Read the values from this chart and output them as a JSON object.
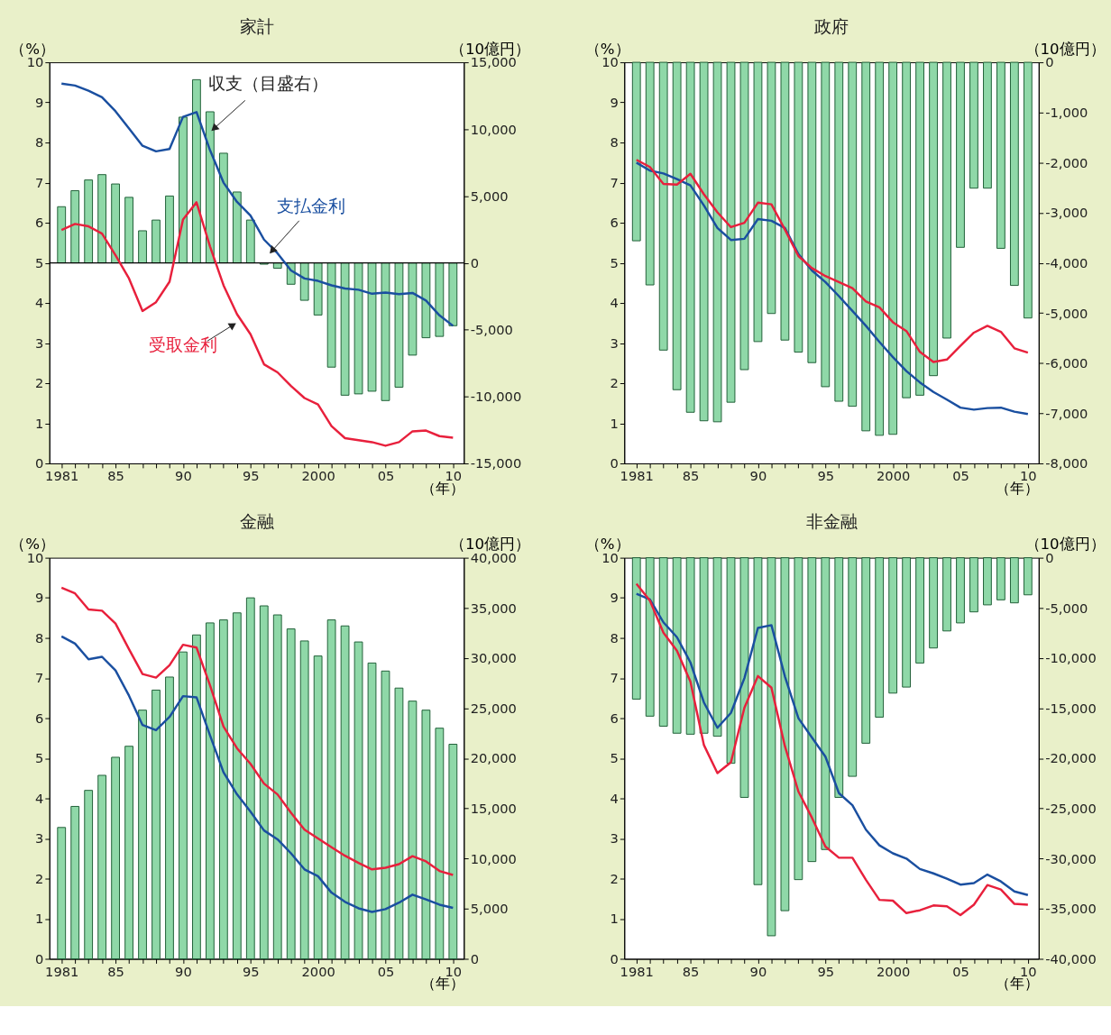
{
  "chart_data": [
    {
      "type": "bar",
      "title": "家計",
      "ylabel": "（%）",
      "y2label": "（10億円）",
      "xlabel": "（年）",
      "x": [
        1981,
        1982,
        1983,
        1984,
        1985,
        1986,
        1987,
        1988,
        1989,
        1990,
        1991,
        1992,
        1993,
        1994,
        1995,
        1996,
        1997,
        1998,
        1999,
        2000,
        2001,
        2002,
        2003,
        2004,
        2005,
        2006,
        2007,
        2008,
        2009,
        2010
      ],
      "xlim": [
        1980.1,
        2010.8
      ],
      "xticks": [
        1981,
        {
          "value": 1982,
          "label": null
        },
        {
          "value": 1983,
          "label": null
        },
        {
          "value": 1984,
          "label": null
        },
        {
          "value": 1985,
          "label": "85"
        },
        {
          "value": 1986,
          "label": null
        },
        {
          "value": 1987,
          "label": null
        },
        {
          "value": 1988,
          "label": null
        },
        {
          "value": 1989,
          "label": null
        },
        {
          "value": 1990,
          "label": "90"
        },
        {
          "value": 1991,
          "label": null
        },
        {
          "value": 1992,
          "label": null
        },
        {
          "value": 1993,
          "label": null
        },
        {
          "value": 1994,
          "label": null
        },
        {
          "value": 1995,
          "label": "95"
        },
        {
          "value": 1996,
          "label": null
        },
        {
          "value": 1997,
          "label": null
        },
        {
          "value": 1998,
          "label": null
        },
        {
          "value": 1999,
          "label": null
        },
        2000,
        {
          "value": 2001,
          "label": null
        },
        {
          "value": 2002,
          "label": null
        },
        {
          "value": 2003,
          "label": null
        },
        {
          "value": 2004,
          "label": null
        },
        {
          "value": 2005,
          "label": "05"
        },
        {
          "value": 2006,
          "label": null
        },
        {
          "value": 2007,
          "label": null
        },
        {
          "value": 2008,
          "label": null
        },
        {
          "value": 2009,
          "label": null
        },
        {
          "value": 2010,
          "label": "10"
        }
      ],
      "ylim": [
        0,
        10
      ],
      "yticks": [
        0,
        1,
        2,
        3,
        4,
        5,
        6,
        7,
        8,
        9,
        10
      ],
      "y2lim": [
        -15000,
        15000
      ],
      "y2ticks": [
        {
          "value": -15000,
          "label": "-15,000"
        },
        {
          "value": -10000,
          "label": "-10,000"
        },
        {
          "value": -5000,
          "label": "-5,000"
        },
        0,
        {
          "value": 5000,
          "label": "5,000"
        },
        {
          "value": 10000,
          "label": "10,000"
        },
        {
          "value": 15000,
          "label": "15,000"
        }
      ],
      "ref_lines": [
        {
          "axis": "y2",
          "value": 0,
          "color": "#000000"
        }
      ],
      "series": [
        {
          "name": "収支（目盛右）",
          "axis": "y2",
          "color": "#8fd8a8",
          "values": [
            4200,
            5400,
            6200,
            6600,
            5900,
            4900,
            2400,
            3200,
            5000,
            10900,
            13700,
            11300,
            8200,
            5300,
            3200,
            -100,
            -400,
            -1600,
            -2800,
            -3900,
            -7800,
            -9900,
            -9800,
            -9600,
            -10300,
            -9300,
            -6900,
            -5600,
            -5500,
            -4700
          ]
        },
        {
          "name": "支払金利",
          "type": "line",
          "color": "#1a4fa0",
          "values": [
            9.47,
            9.42,
            9.29,
            9.13,
            8.78,
            8.35,
            7.92,
            7.78,
            7.84,
            8.64,
            8.76,
            7.81,
            7.0,
            6.52,
            6.18,
            5.58,
            5.24,
            4.81,
            4.61,
            4.55,
            4.44,
            4.36,
            4.33,
            4.23,
            4.26,
            4.22,
            4.25,
            4.06,
            3.69,
            3.43
          ]
        },
        {
          "name": "受取金利",
          "type": "line",
          "color": "#e8203c",
          "values": [
            5.82,
            5.97,
            5.91,
            5.73,
            5.19,
            4.61,
            3.8,
            4.02,
            4.53,
            6.08,
            6.51,
            5.41,
            4.44,
            3.72,
            3.22,
            2.47,
            2.27,
            1.93,
            1.63,
            1.47,
            0.93,
            0.63,
            0.58,
            0.53,
            0.44,
            0.53,
            0.8,
            0.82,
            0.68,
            0.64
          ]
        }
      ]
    },
    {
      "type": "bar",
      "title": "政府",
      "ylabel": "（%）",
      "y2label": "（10億円）",
      "xlabel": "（年）",
      "x": [
        1981,
        1982,
        1983,
        1984,
        1985,
        1986,
        1987,
        1988,
        1989,
        1990,
        1991,
        1992,
        1993,
        1994,
        1995,
        1996,
        1997,
        1998,
        1999,
        2000,
        2001,
        2002,
        2003,
        2004,
        2005,
        2006,
        2007,
        2008,
        2009,
        2010
      ],
      "xlim": [
        1980.1,
        2010.8
      ],
      "xticks": [
        1981,
        {
          "value": 1982,
          "label": null
        },
        {
          "value": 1983,
          "label": null
        },
        {
          "value": 1984,
          "label": null
        },
        {
          "value": 1985,
          "label": "85"
        },
        {
          "value": 1986,
          "label": null
        },
        {
          "value": 1987,
          "label": null
        },
        {
          "value": 1988,
          "label": null
        },
        {
          "value": 1989,
          "label": null
        },
        {
          "value": 1990,
          "label": "90"
        },
        {
          "value": 1991,
          "label": null
        },
        {
          "value": 1992,
          "label": null
        },
        {
          "value": 1993,
          "label": null
        },
        {
          "value": 1994,
          "label": null
        },
        {
          "value": 1995,
          "label": "95"
        },
        {
          "value": 1996,
          "label": null
        },
        {
          "value": 1997,
          "label": null
        },
        {
          "value": 1998,
          "label": null
        },
        {
          "value": 1999,
          "label": null
        },
        2000,
        {
          "value": 2001,
          "label": null
        },
        {
          "value": 2002,
          "label": null
        },
        {
          "value": 2003,
          "label": null
        },
        {
          "value": 2004,
          "label": null
        },
        {
          "value": 2005,
          "label": "05"
        },
        {
          "value": 2006,
          "label": null
        },
        {
          "value": 2007,
          "label": null
        },
        {
          "value": 2008,
          "label": null
        },
        {
          "value": 2009,
          "label": null
        },
        {
          "value": 2010,
          "label": "10"
        }
      ],
      "ylim": [
        0,
        10
      ],
      "yticks": [
        0,
        1,
        2,
        3,
        4,
        5,
        6,
        7,
        8,
        9,
        10
      ],
      "y2lim": [
        -8000,
        0
      ],
      "y2ticks": [
        {
          "value": -8000,
          "label": "-8,000"
        },
        {
          "value": -7000,
          "label": "-7,000"
        },
        {
          "value": -6000,
          "label": "-6,000"
        },
        {
          "value": -5000,
          "label": "-5,000"
        },
        {
          "value": -4000,
          "label": "-4,000"
        },
        {
          "value": -3000,
          "label": "-3,000"
        },
        {
          "value": -2000,
          "label": "-2,000"
        },
        {
          "value": -1000,
          "label": "-1,000"
        },
        0
      ],
      "series": [
        {
          "axis": "y2",
          "color": "#8fd8a8",
          "values": [
            -3560,
            -4440,
            -5740,
            -6530,
            -6980,
            -7150,
            -7170,
            -6780,
            -6130,
            -5570,
            -5010,
            -5540,
            -5780,
            -5990,
            -6470,
            -6760,
            -6860,
            -7350,
            -7440,
            -7420,
            -6690,
            -6640,
            -6250,
            -5500,
            -3690,
            -2510,
            -2510,
            -3710,
            -4450,
            -5100
          ]
        },
        {
          "type": "line",
          "color": "#1a4fa0",
          "values": [
            7.5,
            7.3,
            7.23,
            7.09,
            6.93,
            6.43,
            5.87,
            5.57,
            5.6,
            6.09,
            6.05,
            5.87,
            5.22,
            4.81,
            4.52,
            4.17,
            3.8,
            3.43,
            3.03,
            2.65,
            2.3,
            2.02,
            1.78,
            1.59,
            1.39,
            1.34,
            1.38,
            1.39,
            1.29,
            1.23
          ]
        },
        {
          "type": "line",
          "color": "#e8203c",
          "values": [
            7.57,
            7.39,
            6.97,
            6.95,
            7.22,
            6.71,
            6.26,
            5.89,
            6.0,
            6.5,
            6.46,
            5.83,
            5.17,
            4.87,
            4.67,
            4.52,
            4.37,
            4.04,
            3.89,
            3.52,
            3.3,
            2.78,
            2.53,
            2.59,
            2.93,
            3.26,
            3.43,
            3.28,
            2.87,
            2.76
          ]
        }
      ]
    },
    {
      "type": "bar",
      "title": "金融",
      "ylabel": "（%）",
      "y2label": "（10億円）",
      "xlabel": "（年）",
      "x": [
        1981,
        1982,
        1983,
        1984,
        1985,
        1986,
        1987,
        1988,
        1989,
        1990,
        1991,
        1992,
        1993,
        1994,
        1995,
        1996,
        1997,
        1998,
        1999,
        2000,
        2001,
        2002,
        2003,
        2004,
        2005,
        2006,
        2007,
        2008,
        2009,
        2010
      ],
      "xlim": [
        1980.1,
        2010.8
      ],
      "xticks": [
        1981,
        {
          "value": 1982,
          "label": null
        },
        {
          "value": 1983,
          "label": null
        },
        {
          "value": 1984,
          "label": null
        },
        {
          "value": 1985,
          "label": "85"
        },
        {
          "value": 1986,
          "label": null
        },
        {
          "value": 1987,
          "label": null
        },
        {
          "value": 1988,
          "label": null
        },
        {
          "value": 1989,
          "label": null
        },
        {
          "value": 1990,
          "label": "90"
        },
        {
          "value": 1991,
          "label": null
        },
        {
          "value": 1992,
          "label": null
        },
        {
          "value": 1993,
          "label": null
        },
        {
          "value": 1994,
          "label": null
        },
        {
          "value": 1995,
          "label": "95"
        },
        {
          "value": 1996,
          "label": null
        },
        {
          "value": 1997,
          "label": null
        },
        {
          "value": 1998,
          "label": null
        },
        {
          "value": 1999,
          "label": null
        },
        2000,
        {
          "value": 2001,
          "label": null
        },
        {
          "value": 2002,
          "label": null
        },
        {
          "value": 2003,
          "label": null
        },
        {
          "value": 2004,
          "label": null
        },
        {
          "value": 2005,
          "label": "05"
        },
        {
          "value": 2006,
          "label": null
        },
        {
          "value": 2007,
          "label": null
        },
        {
          "value": 2008,
          "label": null
        },
        {
          "value": 2009,
          "label": null
        },
        {
          "value": 2010,
          "label": "10"
        }
      ],
      "ylim": [
        0,
        10
      ],
      "yticks": [
        0,
        1,
        2,
        3,
        4,
        5,
        6,
        7,
        8,
        9,
        10
      ],
      "y2lim": [
        0,
        40000
      ],
      "y2ticks": [
        0,
        {
          "value": 5000,
          "label": "5,000"
        },
        {
          "value": 10000,
          "label": "10,000"
        },
        {
          "value": 15000,
          "label": "15,000"
        },
        {
          "value": 20000,
          "label": "20,000"
        },
        {
          "value": 25000,
          "label": "25,000"
        },
        {
          "value": 30000,
          "label": "30,000"
        },
        {
          "value": 35000,
          "label": "35,000"
        },
        {
          "value": 40000,
          "label": "40,000"
        }
      ],
      "series": [
        {
          "axis": "y2",
          "color": "#8fd8a8",
          "values": [
            13100,
            15200,
            16800,
            18300,
            20100,
            21200,
            24800,
            26800,
            28100,
            30600,
            32300,
            33500,
            33800,
            34500,
            36000,
            35200,
            34300,
            32900,
            31700,
            30200,
            33800,
            33200,
            31600,
            29500,
            28700,
            27000,
            25700,
            24800,
            23000,
            21400
          ]
        },
        {
          "type": "line",
          "color": "#1a4fa0",
          "values": [
            8.04,
            7.86,
            7.47,
            7.53,
            7.19,
            6.56,
            5.83,
            5.7,
            6.03,
            6.55,
            6.52,
            5.57,
            4.65,
            4.1,
            3.67,
            3.2,
            2.98,
            2.63,
            2.23,
            2.06,
            1.65,
            1.42,
            1.26,
            1.17,
            1.24,
            1.4,
            1.6,
            1.48,
            1.35,
            1.27
          ]
        },
        {
          "type": "line",
          "color": "#e8203c",
          "values": [
            9.25,
            9.11,
            8.71,
            8.68,
            8.36,
            7.72,
            7.1,
            7.01,
            7.32,
            7.83,
            7.76,
            6.82,
            5.79,
            5.25,
            4.86,
            4.37,
            4.1,
            3.64,
            3.22,
            3.0,
            2.78,
            2.57,
            2.39,
            2.23,
            2.27,
            2.36,
            2.56,
            2.43,
            2.19,
            2.09
          ]
        }
      ]
    },
    {
      "type": "bar",
      "title": "非金融",
      "ylabel": "（%）",
      "y2label": "（10億円）",
      "xlabel": "（年）",
      "x": [
        1981,
        1982,
        1983,
        1984,
        1985,
        1986,
        1987,
        1988,
        1989,
        1990,
        1991,
        1992,
        1993,
        1994,
        1995,
        1996,
        1997,
        1998,
        1999,
        2000,
        2001,
        2002,
        2003,
        2004,
        2005,
        2006,
        2007,
        2008,
        2009,
        2010
      ],
      "xlim": [
        1980.1,
        2010.8
      ],
      "xticks": [
        1981,
        {
          "value": 1982,
          "label": null
        },
        {
          "value": 1983,
          "label": null
        },
        {
          "value": 1984,
          "label": null
        },
        {
          "value": 1985,
          "label": "85"
        },
        {
          "value": 1986,
          "label": null
        },
        {
          "value": 1987,
          "label": null
        },
        {
          "value": 1988,
          "label": null
        },
        {
          "value": 1989,
          "label": null
        },
        {
          "value": 1990,
          "label": "90"
        },
        {
          "value": 1991,
          "label": null
        },
        {
          "value": 1992,
          "label": null
        },
        {
          "value": 1993,
          "label": null
        },
        {
          "value": 1994,
          "label": null
        },
        {
          "value": 1995,
          "label": "95"
        },
        {
          "value": 1996,
          "label": null
        },
        {
          "value": 1997,
          "label": null
        },
        {
          "value": 1998,
          "label": null
        },
        {
          "value": 1999,
          "label": null
        },
        2000,
        {
          "value": 2001,
          "label": null
        },
        {
          "value": 2002,
          "label": null
        },
        {
          "value": 2003,
          "label": null
        },
        {
          "value": 2004,
          "label": null
        },
        {
          "value": 2005,
          "label": "05"
        },
        {
          "value": 2006,
          "label": null
        },
        {
          "value": 2007,
          "label": null
        },
        {
          "value": 2008,
          "label": null
        },
        {
          "value": 2009,
          "label": null
        },
        {
          "value": 2010,
          "label": "10"
        }
      ],
      "ylim": [
        0,
        10
      ],
      "yticks": [
        0,
        1,
        2,
        3,
        4,
        5,
        6,
        7,
        8,
        9,
        10
      ],
      "y2lim": [
        -40000,
        0
      ],
      "y2ticks": [
        {
          "value": -40000,
          "label": "-40,000"
        },
        {
          "value": -35000,
          "label": "-35,000"
        },
        {
          "value": -30000,
          "label": "-30,000"
        },
        {
          "value": -25000,
          "label": "-25,000"
        },
        {
          "value": -20000,
          "label": "-20,000"
        },
        {
          "value": -15000,
          "label": "-15,000"
        },
        {
          "value": -10000,
          "label": "-10,000"
        },
        {
          "value": -5000,
          "label": "-5,000"
        },
        0
      ],
      "series": [
        {
          "axis": "y2",
          "color": "#8fd8a8",
          "values": [
            -14100,
            -15800,
            -16800,
            -17500,
            -17600,
            -17500,
            -17800,
            -20500,
            -23900,
            -32600,
            -37700,
            -35200,
            -32100,
            -30300,
            -29100,
            -23900,
            -21800,
            -18500,
            -15900,
            -13500,
            -12900,
            -10500,
            -9000,
            -7300,
            -6500,
            -5400,
            -4700,
            -4200,
            -4500,
            -3700
          ]
        },
        {
          "type": "line",
          "color": "#1a4fa0",
          "values": [
            9.1,
            8.96,
            8.39,
            8.02,
            7.39,
            6.39,
            5.76,
            6.13,
            7.0,
            8.25,
            8.32,
            7.04,
            6.0,
            5.52,
            5.04,
            4.13,
            3.83,
            3.22,
            2.83,
            2.63,
            2.5,
            2.24,
            2.13,
            2.0,
            1.85,
            1.89,
            2.1,
            1.93,
            1.68,
            1.59
          ]
        },
        {
          "type": "line",
          "color": "#e8203c",
          "values": [
            9.35,
            8.93,
            8.13,
            7.68,
            6.91,
            5.33,
            4.63,
            4.9,
            6.26,
            7.05,
            6.76,
            5.3,
            4.17,
            3.52,
            2.8,
            2.52,
            2.52,
            1.97,
            1.47,
            1.45,
            1.14,
            1.21,
            1.33,
            1.31,
            1.09,
            1.35,
            1.84,
            1.73,
            1.37,
            1.35
          ]
        }
      ]
    }
  ]
}
